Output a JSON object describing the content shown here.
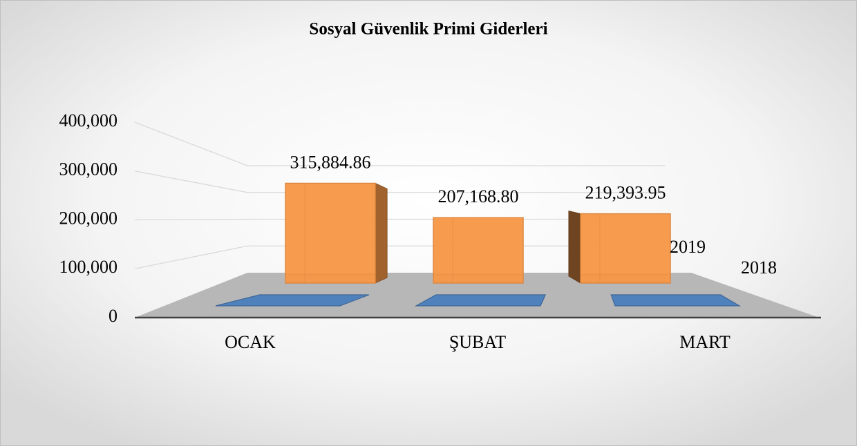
{
  "chart_data": {
    "type": "bar3d",
    "title": "Sosyal Güvenlik Primi Giderleri",
    "categories": [
      "OCAK",
      "ŞUBAT",
      "MART"
    ],
    "series": [
      {
        "name": "2019",
        "color": "#f79646",
        "values": [
          315884.86,
          207168.8,
          219393.95
        ],
        "value_labels": [
          "315,884.86",
          "207,168.80",
          "219,393.95"
        ]
      },
      {
        "name": "2018",
        "color": "#4f81bd",
        "values": [
          0,
          0,
          0
        ]
      }
    ],
    "ylim": [
      0,
      400000
    ],
    "yticks": [
      0,
      {
        "value": 100000,
        "label": "100,000"
      },
      {
        "value": 200000,
        "label": "200,000"
      },
      {
        "value": 300000,
        "label": "300,000"
      },
      {
        "value": 400000,
        "label": "400,000"
      }
    ],
    "grid": true
  }
}
